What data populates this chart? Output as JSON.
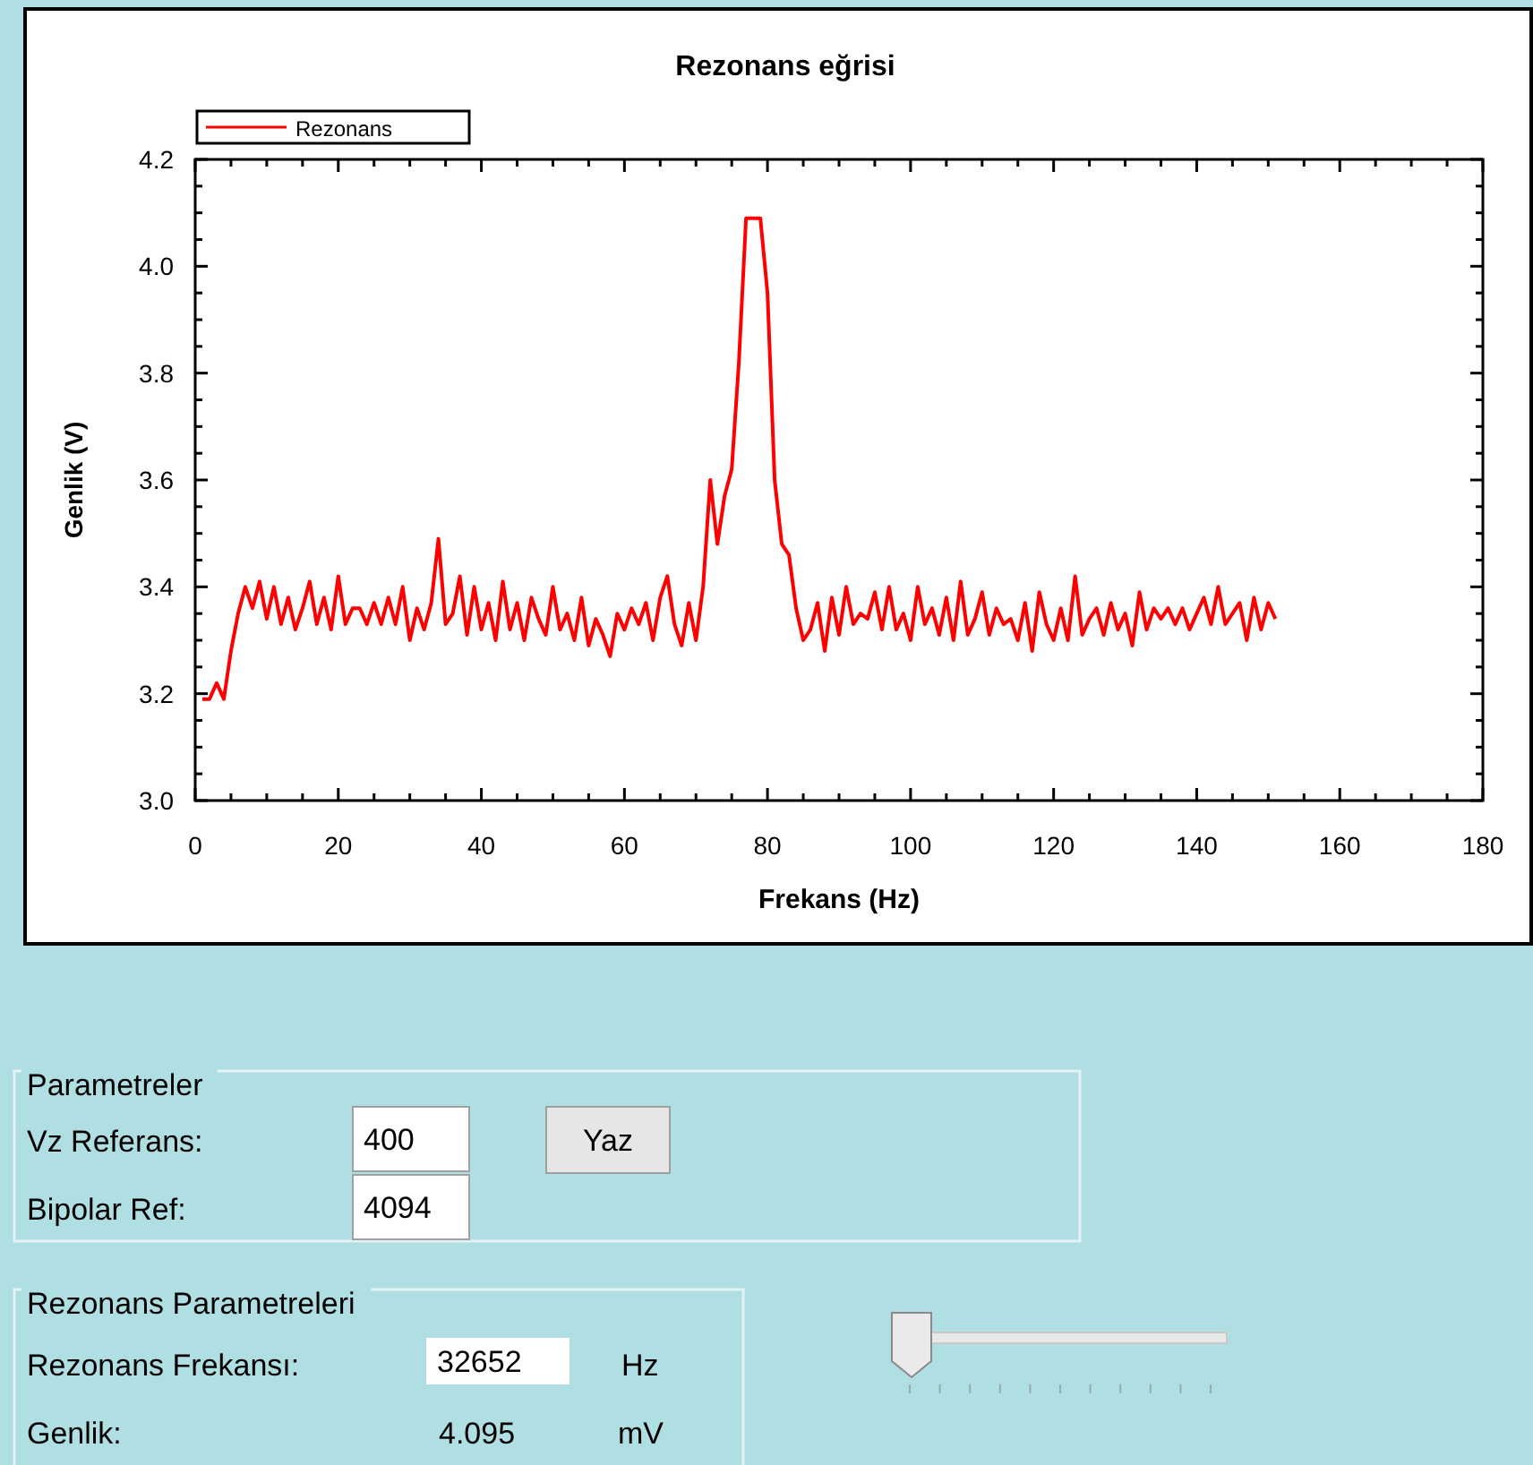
{
  "chart_data": [
    {
      "type": "line",
      "title": "Rezonans eğrisi",
      "xlabel": "Frekans (Hz)",
      "ylabel": "Genlik (V)",
      "xlim": [
        0,
        180
      ],
      "ylim": [
        3.0,
        4.2
      ],
      "xticks": [
        0,
        {
          "value": 5,
          "label": null
        },
        {
          "value": 10,
          "label": null
        },
        {
          "value": 15,
          "label": null
        },
        20,
        {
          "value": 25,
          "label": null
        },
        {
          "value": 30,
          "label": null
        },
        {
          "value": 35,
          "label": null
        },
        40,
        {
          "value": 45,
          "label": null
        },
        {
          "value": 50,
          "label": null
        },
        {
          "value": 55,
          "label": null
        },
        60,
        {
          "value": 65,
          "label": null
        },
        {
          "value": 70,
          "label": null
        },
        {
          "value": 75,
          "label": null
        },
        80,
        {
          "value": 85,
          "label": null
        },
        {
          "value": 90,
          "label": null
        },
        {
          "value": 95,
          "label": null
        },
        100,
        {
          "value": 105,
          "label": null
        },
        {
          "value": 110,
          "label": null
        },
        {
          "value": 115,
          "label": null
        },
        120,
        {
          "value": 125,
          "label": null
        },
        {
          "value": 130,
          "label": null
        },
        {
          "value": 135,
          "label": null
        },
        140,
        {
          "value": 145,
          "label": null
        },
        {
          "value": 150,
          "label": null
        },
        {
          "value": 155,
          "label": null
        },
        160,
        {
          "value": 165,
          "label": null
        },
        {
          "value": 170,
          "label": null
        },
        {
          "value": 175,
          "label": null
        },
        180
      ],
      "yticks": [
        {
          "value": 3.0,
          "label": "3.0"
        },
        {
          "value": 3.05,
          "label": null
        },
        {
          "value": 3.1,
          "label": null
        },
        {
          "value": 3.15,
          "label": null
        },
        {
          "value": 3.2,
          "label": "3.2"
        },
        {
          "value": 3.25,
          "label": null
        },
        {
          "value": 3.3,
          "label": null
        },
        {
          "value": 3.35,
          "label": null
        },
        {
          "value": 3.4,
          "label": "3.4"
        },
        {
          "value": 3.45,
          "label": null
        },
        {
          "value": 3.5,
          "label": null
        },
        {
          "value": 3.55,
          "label": null
        },
        {
          "value": 3.6,
          "label": "3.6"
        },
        {
          "value": 3.65,
          "label": null
        },
        {
          "value": 3.7,
          "label": null
        },
        {
          "value": 3.75,
          "label": null
        },
        {
          "value": 3.8,
          "label": "3.8"
        },
        {
          "value": 3.85,
          "label": null
        },
        {
          "value": 3.9,
          "label": null
        },
        {
          "value": 3.95,
          "label": null
        },
        {
          "value": 4.0,
          "label": "4.0"
        },
        {
          "value": 4.05,
          "label": null
        },
        {
          "value": 4.1,
          "label": null
        },
        {
          "value": 4.15,
          "label": null
        },
        {
          "value": 4.2,
          "label": "4.2"
        }
      ],
      "x": [
        1,
        2,
        3,
        4,
        5,
        6,
        7,
        8,
        9,
        10,
        11,
        12,
        13,
        14,
        15,
        16,
        17,
        18,
        19,
        20,
        21,
        22,
        23,
        24,
        25,
        26,
        27,
        28,
        29,
        30,
        31,
        32,
        33,
        34,
        35,
        36,
        37,
        38,
        39,
        40,
        41,
        42,
        43,
        44,
        45,
        46,
        47,
        48,
        49,
        50,
        51,
        52,
        53,
        54,
        55,
        56,
        57,
        58,
        59,
        60,
        61,
        62,
        63,
        64,
        65,
        66,
        67,
        68,
        69,
        70,
        71,
        72,
        73,
        74,
        75,
        76,
        77,
        78,
        79,
        80,
        81,
        82,
        83,
        84,
        85,
        86,
        87,
        88,
        89,
        90,
        91,
        92,
        93,
        94,
        95,
        96,
        97,
        98,
        99,
        100,
        101,
        102,
        103,
        104,
        105,
        106,
        107,
        108,
        109,
        110,
        111,
        112,
        113,
        114,
        115,
        116,
        117,
        118,
        119,
        120,
        121,
        122,
        123,
        124,
        125,
        126,
        127,
        128,
        129,
        130,
        131,
        132,
        133,
        134,
        135,
        136,
        137,
        138,
        139,
        140,
        141,
        142,
        143,
        144,
        145,
        146,
        147,
        148,
        149,
        150,
        151
      ],
      "series": [
        {
          "name": "Rezonans",
          "color": "#ff0000",
          "values": [
            3.19,
            3.19,
            3.22,
            3.19,
            3.28,
            3.35,
            3.4,
            3.36,
            3.41,
            3.34,
            3.4,
            3.33,
            3.38,
            3.32,
            3.36,
            3.41,
            3.33,
            3.38,
            3.32,
            3.42,
            3.33,
            3.36,
            3.36,
            3.33,
            3.37,
            3.33,
            3.38,
            3.33,
            3.4,
            3.3,
            3.36,
            3.32,
            3.37,
            3.49,
            3.33,
            3.35,
            3.42,
            3.31,
            3.4,
            3.32,
            3.37,
            3.3,
            3.41,
            3.32,
            3.37,
            3.3,
            3.38,
            3.34,
            3.31,
            3.4,
            3.32,
            3.35,
            3.3,
            3.38,
            3.29,
            3.34,
            3.31,
            3.27,
            3.35,
            3.32,
            3.36,
            3.33,
            3.37,
            3.3,
            3.38,
            3.42,
            3.33,
            3.29,
            3.37,
            3.3,
            3.4,
            3.6,
            3.48,
            3.57,
            3.62,
            3.82,
            4.09,
            4.09,
            4.09,
            3.95,
            3.6,
            3.48,
            3.46,
            3.36,
            3.3,
            3.32,
            3.37,
            3.28,
            3.38,
            3.31,
            3.4,
            3.33,
            3.35,
            3.34,
            3.39,
            3.32,
            3.4,
            3.32,
            3.35,
            3.3,
            3.4,
            3.33,
            3.36,
            3.31,
            3.38,
            3.3,
            3.41,
            3.31,
            3.34,
            3.39,
            3.31,
            3.36,
            3.33,
            3.34,
            3.3,
            3.37,
            3.28,
            3.39,
            3.33,
            3.3,
            3.36,
            3.3,
            3.42,
            3.31,
            3.34,
            3.36,
            3.31,
            3.37,
            3.32,
            3.35,
            3.29,
            3.39,
            3.32,
            3.36,
            3.34,
            3.36,
            3.33,
            3.36,
            3.32,
            3.35,
            3.38,
            3.33,
            3.4,
            3.33,
            3.35,
            3.37,
            3.3,
            3.38,
            3.32,
            3.37,
            3.34
          ]
        }
      ],
      "legend": "top left"
    },
    {
      "type": "other",
      "title": "Parametreler",
      "annotations": [
        "Vz Referans:",
        "400",
        "Yaz",
        "Bipolar Ref:",
        "4094"
      ]
    },
    {
      "type": "other",
      "title": "Rezonans Parametreleri",
      "annotations": [
        "Rezonans Frekansı:",
        "32652",
        "Hz",
        "Genlik:",
        "4.095",
        "mV"
      ]
    }
  ]
}
